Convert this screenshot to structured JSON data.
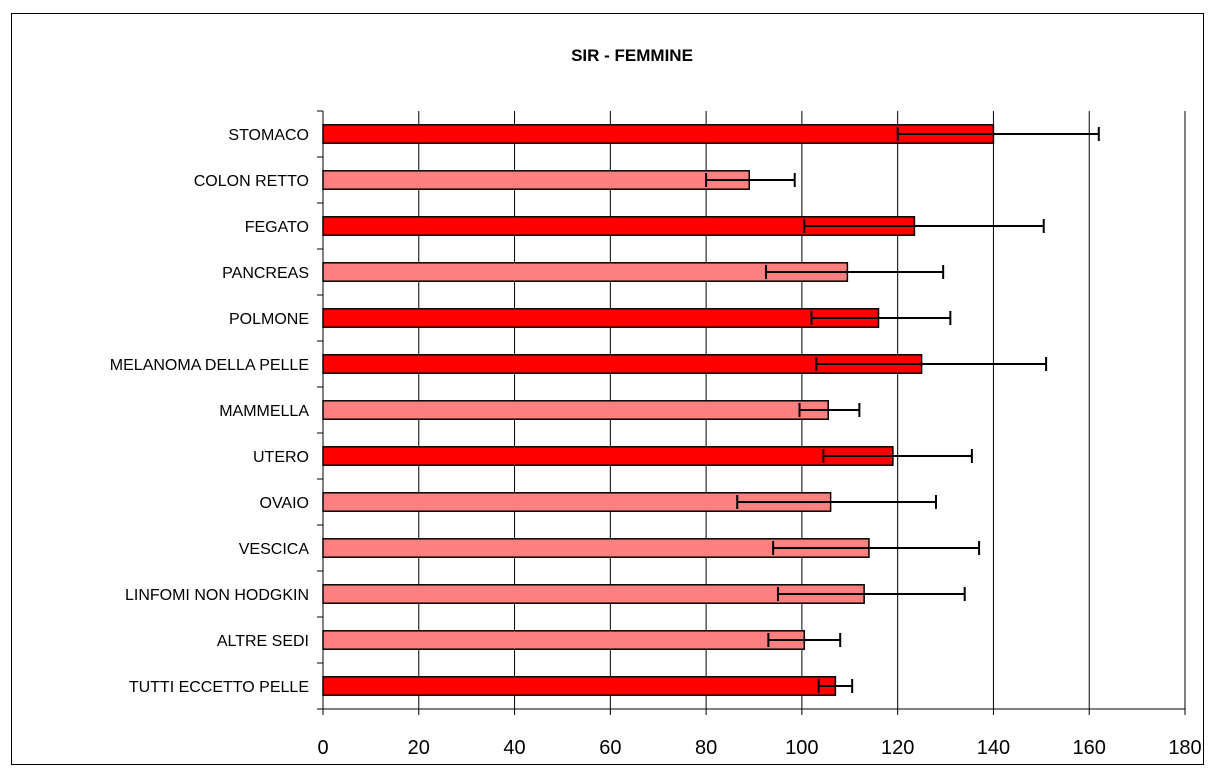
{
  "chart_data": {
    "type": "bar",
    "orientation": "horizontal",
    "title": "SIR - FEMMINE",
    "xlabel": "",
    "ylabel": "",
    "xlim": [
      0,
      180
    ],
    "xticks": [
      "0",
      "20",
      "40",
      "60",
      "80",
      "100",
      "120",
      "140",
      "160",
      "180"
    ],
    "grid": "vertical-major",
    "legend": "none",
    "categories": [
      "STOMACO",
      "COLON RETTO",
      "FEGATO",
      "PANCREAS",
      "POLMONE",
      "MELANOMA DELLA PELLE",
      "MAMMELLA",
      "UTERO",
      "OVAIO",
      "VESCICA",
      "LINFOMI NON HODGKIN",
      "ALTRE SEDI",
      "TUTTI ECCETTO PELLE"
    ],
    "values": [
      140,
      89,
      123.5,
      109.5,
      116,
      125,
      105.5,
      119,
      106,
      114,
      113,
      100.5,
      107
    ],
    "ci_lower": [
      120,
      80,
      100.5,
      92.5,
      102,
      103,
      99.5,
      104.5,
      86.5,
      94,
      95,
      93,
      103.5
    ],
    "ci_upper": [
      162,
      98.5,
      150.5,
      129.5,
      131,
      151,
      112,
      135.5,
      128,
      137,
      134,
      108,
      110.5
    ],
    "significant": [
      true,
      false,
      true,
      false,
      true,
      true,
      false,
      true,
      false,
      false,
      false,
      false,
      true
    ],
    "colors": {
      "significant": "#ff0000",
      "not_significant": "#ff8080",
      "outline": "#000000",
      "grid": "#000000"
    }
  }
}
